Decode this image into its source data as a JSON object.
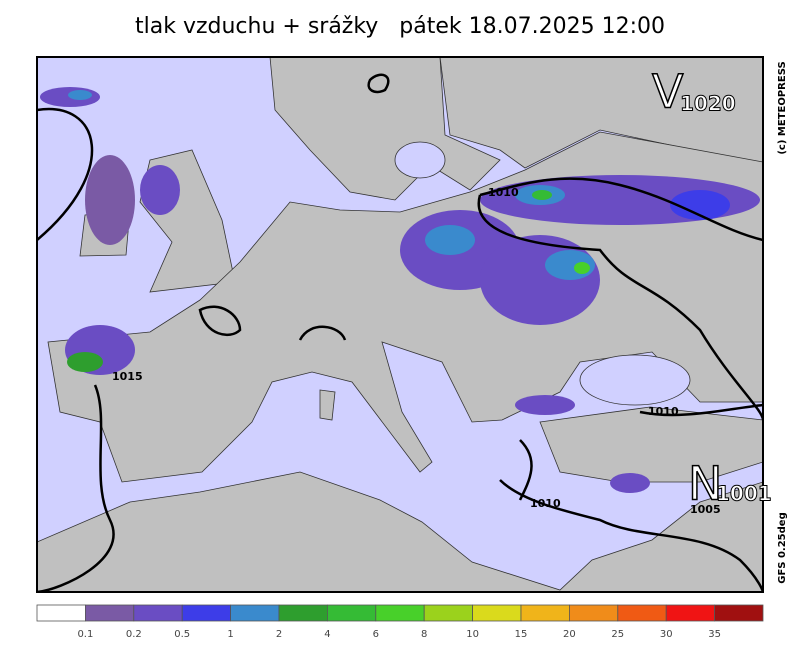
{
  "title": "tlak vzduchu + srážky   pátek 18.07.2025 12:00",
  "copyright": "(c) METEOPRESS",
  "model": "GFS 0.25deg",
  "pressure_centers": [
    {
      "letter": "V",
      "value": 1020
    },
    {
      "letter": "N",
      "value": 1001
    }
  ],
  "isobar_labels": [
    1010,
    1015,
    1010,
    1010,
    1005
  ],
  "legend": {
    "colors": [
      "#ffffff",
      "#7a5aa5",
      "#6a4dc3",
      "#3d3de8",
      "#3a8acd",
      "#2e9e2e",
      "#35bb35",
      "#48d02a",
      "#9bd21c",
      "#dada1c",
      "#f0b41a",
      "#f08c1a",
      "#f05a14",
      "#f01414",
      "#a01010"
    ],
    "labels": [
      0.1,
      0.2,
      0.5,
      1,
      2,
      4,
      6,
      8,
      10,
      15,
      20,
      25,
      30,
      35
    ]
  }
}
